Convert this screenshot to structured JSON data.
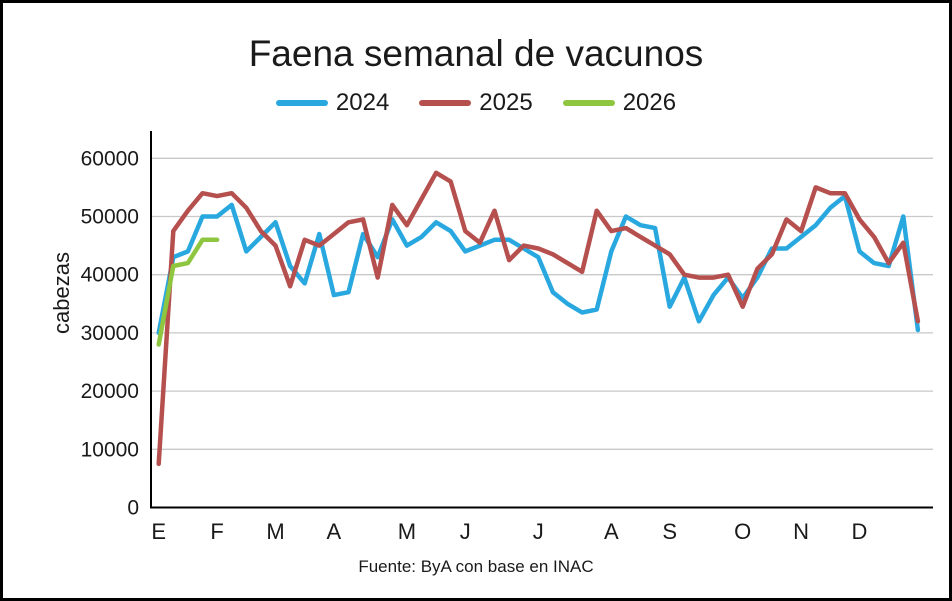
{
  "title": "Faena semanal de vacunos",
  "ylabel": "cabezas",
  "footer": "Fuente: ByA con base en INAC",
  "colors": {
    "axis": "#000000",
    "grid": "#c9c9c9",
    "text": "#1a1a1a",
    "series_2024": "#29a8e0",
    "series_2025": "#b5504e",
    "series_2026": "#8fc640"
  },
  "chart_data": {
    "type": "line",
    "title": "Faena semanal de vacunos",
    "xlabel": "",
    "ylabel": "cabezas",
    "x_unit": "semana (weekly points)",
    "ylim": [
      0,
      60000
    ],
    "yticks": [
      0,
      10000,
      20000,
      30000,
      40000,
      50000,
      60000
    ],
    "grid": true,
    "legend_position": "top",
    "month_labels": [
      {
        "label": "E",
        "week_index": 0
      },
      {
        "label": "F",
        "week_index": 4
      },
      {
        "label": "M",
        "week_index": 8
      },
      {
        "label": "A",
        "week_index": 12
      },
      {
        "label": "M",
        "week_index": 17
      },
      {
        "label": "J",
        "week_index": 21
      },
      {
        "label": "J",
        "week_index": 26
      },
      {
        "label": "A",
        "week_index": 31
      },
      {
        "label": "S",
        "week_index": 35
      },
      {
        "label": "O",
        "week_index": 40
      },
      {
        "label": "N",
        "week_index": 44
      },
      {
        "label": "D",
        "week_index": 48
      }
    ],
    "series": [
      {
        "name": "2024",
        "color": "#29a8e0",
        "values": [
          30000,
          43000,
          44000,
          50000,
          50000,
          52000,
          44000,
          46500,
          49000,
          41500,
          38500,
          47000,
          36500,
          37000,
          47000,
          43000,
          49500,
          45000,
          46500,
          49000,
          47500,
          44000,
          45000,
          46000,
          46000,
          44500,
          43000,
          37000,
          35000,
          33500,
          34000,
          44000,
          50000,
          48500,
          48000,
          34500,
          39500,
          32000,
          36500,
          39500,
          36000,
          39500,
          44500,
          44500,
          46500,
          48500,
          51500,
          53500,
          44000,
          42000,
          41500,
          50000,
          30500
        ]
      },
      {
        "name": "2025",
        "color": "#b5504e",
        "values": [
          7500,
          47500,
          51000,
          54000,
          53500,
          54000,
          51500,
          47500,
          45000,
          38000,
          46000,
          45000,
          47000,
          49000,
          49500,
          39500,
          52000,
          48500,
          53000,
          57500,
          56000,
          47500,
          45500,
          51000,
          42500,
          45000,
          44500,
          43500,
          42000,
          40500,
          51000,
          47500,
          48000,
          46500,
          45000,
          43500,
          40000,
          39500,
          39500,
          40000,
          34500,
          41000,
          43500,
          49500,
          47500,
          55000,
          54000,
          54000,
          49500,
          46500,
          42000,
          45500,
          32000
        ]
      },
      {
        "name": "2026",
        "color": "#8fc640",
        "values": [
          28000,
          41500,
          42000,
          46000,
          46000
        ]
      }
    ]
  }
}
